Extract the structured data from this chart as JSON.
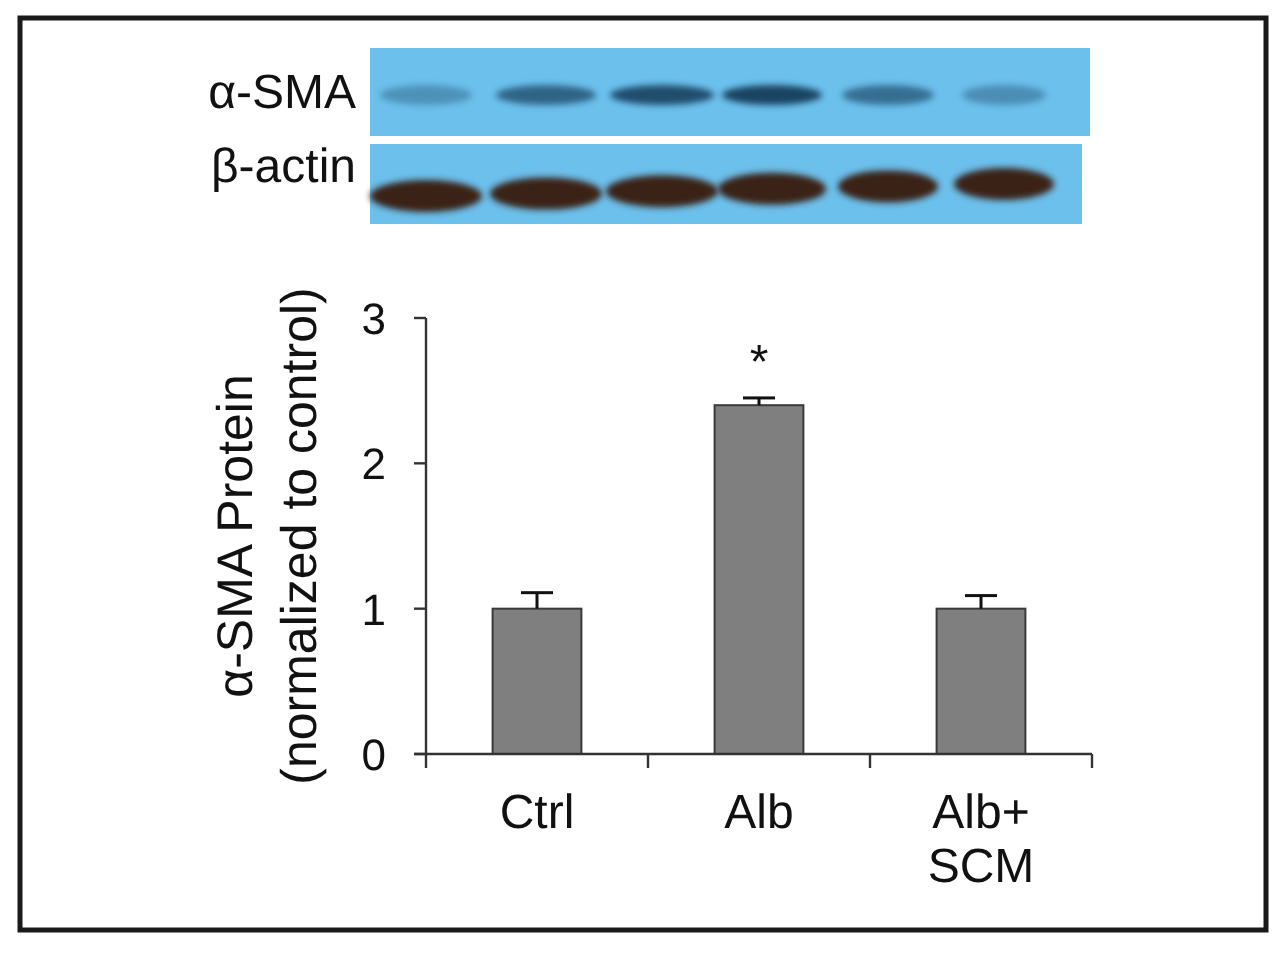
{
  "chart_data": {
    "type": "bar",
    "categories": [
      "Ctrl",
      "Alb",
      "Alb+\nSCM"
    ],
    "values": [
      1.0,
      2.4,
      1.0
    ],
    "color": "#7f7f7f",
    "errors": [
      [
        1.0,
        1.11
      ],
      [
        2.4,
        2.45
      ],
      [
        1.0,
        1.09
      ]
    ],
    "ylim": [
      0,
      3
    ],
    "yticks": [
      0,
      1,
      2,
      3
    ],
    "ylabel": "α-SMA Protein\n(normalized to control)",
    "annotations": [
      "α-SMA",
      "β-actin",
      "*"
    ]
  }
}
